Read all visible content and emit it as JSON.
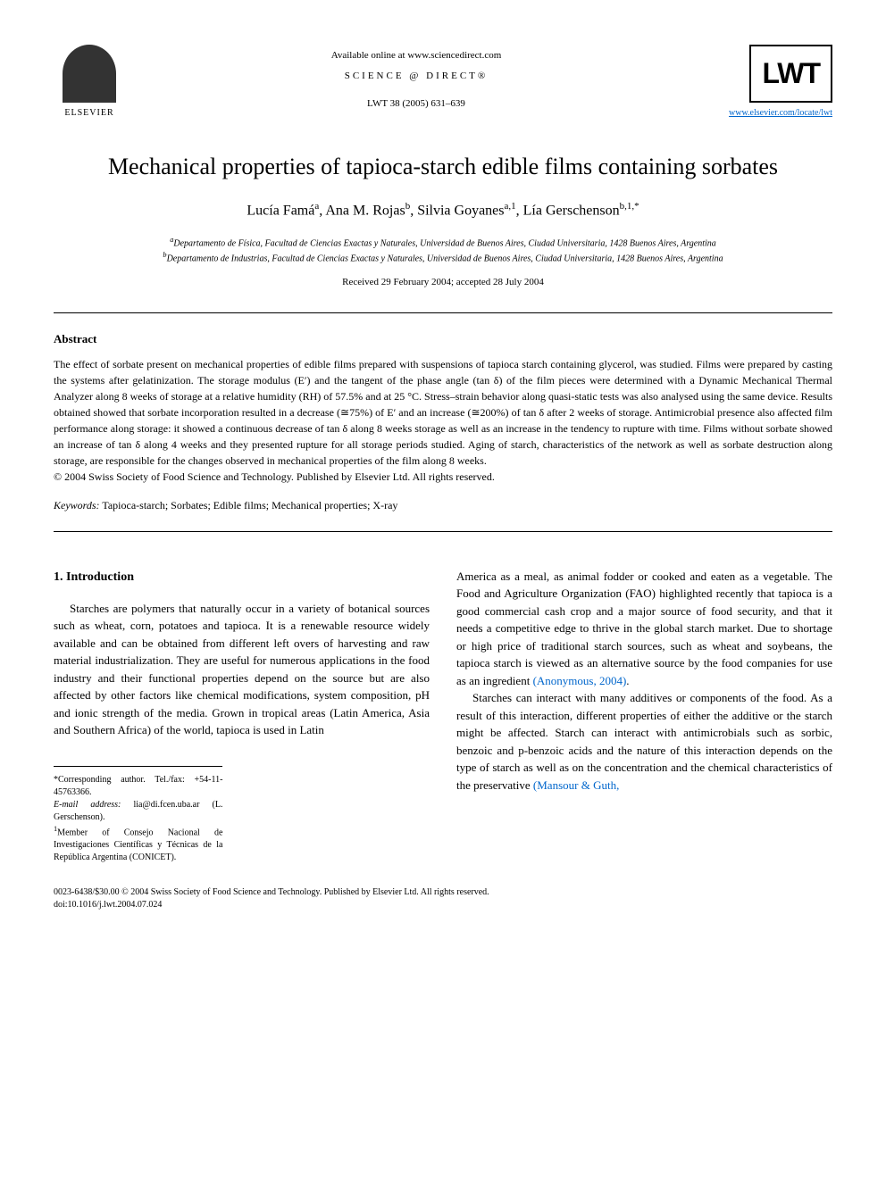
{
  "header": {
    "available_online": "Available online at www.sciencedirect.com",
    "science_direct": "SCIENCE @ DIRECT®",
    "journal_ref": "LWT 38 (2005) 631–639",
    "elsevier_label": "ELSEVIER",
    "lwt_label": "LWT",
    "lwt_link": "www.elsevier.com/locate/lwt"
  },
  "title": "Mechanical properties of tapioca-starch edible films containing sorbates",
  "authors": "Lucía Famá<sup>a</sup>, Ana M. Rojas<sup>b</sup>, Silvia Goyanes<sup>a,1</sup>, Lía Gerschenson<sup>b,1,*</sup>",
  "affiliations": {
    "a": "<sup>a</sup>Departamento de Física, Facultad de Ciencias Exactas y Naturales, Universidad de Buenos Aires, Ciudad Universitaria, 1428 Buenos Aires, Argentina",
    "b": "<sup>b</sup>Departamento de Industrias, Facultad de Ciencias Exactas y Naturales, Universidad de Buenos Aires, Ciudad Universitaria, 1428 Buenos Aires, Argentina"
  },
  "dates": "Received 29 February 2004; accepted 28 July 2004",
  "abstract": {
    "heading": "Abstract",
    "text": "The effect of sorbate present on mechanical properties of edible films prepared with suspensions of tapioca starch containing glycerol, was studied. Films were prepared by casting the systems after gelatinization. The storage modulus (E′) and the tangent of the phase angle (tan δ) of the film pieces were determined with a Dynamic Mechanical Thermal Analyzer along 8 weeks of storage at a relative humidity (RH) of 57.5% and at 25 °C. Stress–strain behavior along quasi-static tests was also analysed using the same device. Results obtained showed that sorbate incorporation resulted in a decrease (≅75%) of E′ and an increase (≅200%) of tan δ after 2 weeks of storage. Antimicrobial presence also affected film performance along storage: it showed a continuous decrease of tan δ along 8 weeks storage as well as an increase in the tendency to rupture with time. Films without sorbate showed an increase of tan δ along 4 weeks and they presented rupture for all storage periods studied. Aging of starch, characteristics of the network as well as sorbate destruction along storage, are responsible for the changes observed in mechanical properties of the film along 8 weeks.",
    "copyright": "© 2004 Swiss Society of Food Science and Technology. Published by Elsevier Ltd. All rights reserved."
  },
  "keywords": {
    "label": "Keywords:",
    "text": "Tapioca-starch; Sorbates; Edible films; Mechanical properties; X-ray"
  },
  "body": {
    "section_heading": "1. Introduction",
    "col1_p1": "Starches are polymers that naturally occur in a variety of botanical sources such as wheat, corn, potatoes and tapioca. It is a renewable resource widely available and can be obtained from different left overs of harvesting and raw material industrialization. They are useful for numerous applications in the food industry and their functional properties depend on the source but are also affected by other factors like chemical modifications, system composition, pH and ionic strength of the media. Grown in tropical areas (Latin America, Asia and Southern Africa) of the world, tapioca is used in Latin",
    "col2_p1": "America as a meal, as animal fodder or cooked and eaten as a vegetable. The Food and Agriculture Organization (FAO) highlighted recently that tapioca is a good commercial cash crop and a major source of food security, and that it needs a competitive edge to thrive in the global starch market. Due to shortage or high price of traditional starch sources, such as wheat and soybeans, the tapioca starch is viewed as an alternative source by the food companies for use as an ingredient ",
    "col2_cite1": "(Anonymous, 2004)",
    "col2_p1_end": ".",
    "col2_p2": "Starches can interact with many additives or components of the food. As a result of this interaction, different properties of either the additive or the starch might be affected. Starch can interact with antimicrobials such as sorbic, benzoic and p-benzoic acids and the nature of this interaction depends on the type of starch as well as on the concentration and the chemical characteristics of the preservative ",
    "col2_cite2": "(Mansour & Guth,"
  },
  "footnotes": {
    "corresponding": "*Corresponding author. Tel./fax: +54-11-45763366.",
    "email_label": "E-mail address:",
    "email": "lia@di.fcen.uba.ar (L. Gerschenson).",
    "member": "<sup>1</sup>Member of Consejo Nacional de Investigaciones Científicas y Técnicas de la República Argentina (CONICET)."
  },
  "footer": {
    "line1": "0023-6438/$30.00 © 2004 Swiss Society of Food Science and Technology. Published by Elsevier Ltd. All rights reserved.",
    "line2": "doi:10.1016/j.lwt.2004.07.024"
  }
}
